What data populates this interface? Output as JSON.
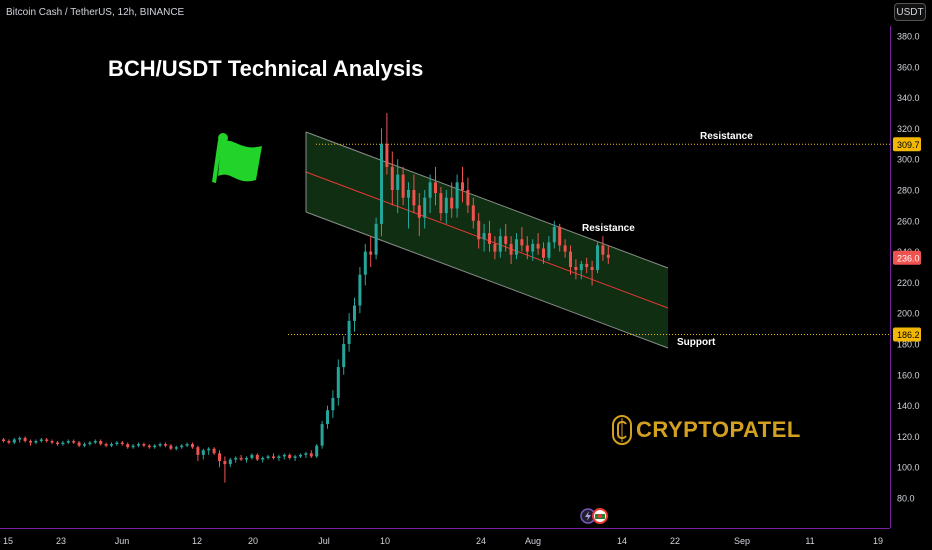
{
  "header": {
    "symbol": "Bitcoin Cash / TetherUS, 12h, BINANCE",
    "title": "BCH/USDT Technical Analysis",
    "currency": "USDT"
  },
  "logo": {
    "text": "CRYPTOPATEL"
  },
  "colors": {
    "up": "#26a69a",
    "down": "#ef5350",
    "channel_fill": "#0f2e12",
    "channel_edge": "#8a8f8a",
    "midline": "#e53935",
    "resistance_level": "#f2b705",
    "support_level": "#f2b705",
    "flag": "#22d32a",
    "logo": "#d4a020",
    "axis_border": "#7b1fa2"
  },
  "chart_data": {
    "type": "candlestick",
    "symbol": "BCHUSDT",
    "interval": "12h",
    "ylim": [
      70,
      390
    ],
    "y_ticks": [
      80,
      100,
      120,
      140,
      160,
      180,
      200,
      220,
      240,
      260,
      280,
      300,
      320,
      340,
      360,
      380
    ],
    "y_tick_labels": [
      "80.0",
      "100.0",
      "120.0",
      "140.0",
      "160.0",
      "180.0",
      "200.0",
      "220.0",
      "240.0",
      "260.0",
      "280.0",
      "300.0",
      "320.0",
      "340.0",
      "360.0",
      "380.0"
    ],
    "x_ticks": [
      "15",
      "23",
      "Jun",
      "12",
      "20",
      "Jul",
      "10",
      "24",
      "Aug",
      "14",
      "22",
      "Sep",
      "11",
      "19"
    ],
    "price_labels": [
      {
        "value": 309.7,
        "text": "309.7",
        "color": "#f2b705"
      },
      {
        "value": 236.0,
        "text": "236.0",
        "color": "#ef5350"
      },
      {
        "value": 186.2,
        "text": "186.2",
        "color": "#f2b705"
      }
    ],
    "levels": [
      {
        "value": 309.7,
        "label": "Resistance"
      },
      {
        "value": 186.2,
        "label": "Support"
      }
    ],
    "channel_annotation": "Resistance",
    "candles": [
      [
        118,
        119,
        116,
        117
      ],
      [
        117,
        118,
        115,
        116
      ],
      [
        116,
        119,
        115,
        118
      ],
      [
        118,
        120,
        116,
        119
      ],
      [
        119,
        120,
        116,
        117
      ],
      [
        117,
        118,
        114,
        116
      ],
      [
        116,
        118,
        115,
        117
      ],
      [
        117,
        119,
        116,
        118
      ],
      [
        118,
        119,
        116,
        117
      ],
      [
        117,
        118,
        115,
        116
      ],
      [
        116,
        117,
        114,
        115
      ],
      [
        115,
        117,
        114,
        116
      ],
      [
        116,
        118,
        115,
        117
      ],
      [
        117,
        118,
        115,
        116
      ],
      [
        116,
        117,
        113,
        114
      ],
      [
        114,
        116,
        113,
        115
      ],
      [
        115,
        117,
        114,
        116
      ],
      [
        116,
        118,
        115,
        117
      ],
      [
        117,
        118,
        114,
        115
      ],
      [
        115,
        116,
        113,
        114
      ],
      [
        114,
        116,
        113,
        115
      ],
      [
        115,
        117,
        114,
        116
      ],
      [
        116,
        117,
        114,
        115
      ],
      [
        115,
        116,
        112,
        113
      ],
      [
        113,
        115,
        112,
        114
      ],
      [
        114,
        116,
        113,
        115
      ],
      [
        115,
        116,
        113,
        114
      ],
      [
        114,
        115,
        112,
        113
      ],
      [
        113,
        115,
        112,
        114
      ],
      [
        114,
        116,
        113,
        115
      ],
      [
        115,
        116,
        113,
        114
      ],
      [
        114,
        115,
        111,
        112
      ],
      [
        112,
        114,
        111,
        113
      ],
      [
        113,
        115,
        112,
        114
      ],
      [
        114,
        116,
        113,
        115
      ],
      [
        115,
        116,
        112,
        113
      ],
      [
        113,
        114,
        104,
        108
      ],
      [
        108,
        112,
        105,
        111
      ],
      [
        111,
        113,
        108,
        112
      ],
      [
        112,
        113,
        108,
        109
      ],
      [
        109,
        111,
        100,
        104
      ],
      [
        104,
        107,
        90,
        102
      ],
      [
        102,
        106,
        100,
        105
      ],
      [
        105,
        107,
        103,
        106
      ],
      [
        106,
        108,
        104,
        105
      ],
      [
        105,
        107,
        103,
        106
      ],
      [
        106,
        109,
        105,
        108
      ],
      [
        108,
        109,
        104,
        105
      ],
      [
        105,
        107,
        103,
        106
      ],
      [
        106,
        108,
        105,
        107
      ],
      [
        107,
        109,
        105,
        106
      ],
      [
        106,
        108,
        104,
        107
      ],
      [
        107,
        109,
        105,
        108
      ],
      [
        108,
        109,
        105,
        106
      ],
      [
        106,
        108,
        104,
        107
      ],
      [
        107,
        109,
        106,
        108
      ],
      [
        108,
        110,
        106,
        109
      ],
      [
        109,
        111,
        106,
        107
      ],
      [
        107,
        115,
        106,
        114
      ],
      [
        114,
        130,
        112,
        128
      ],
      [
        128,
        140,
        125,
        137
      ],
      [
        137,
        150,
        132,
        145
      ],
      [
        145,
        170,
        140,
        165
      ],
      [
        165,
        185,
        160,
        180
      ],
      [
        180,
        200,
        175,
        195
      ],
      [
        195,
        210,
        188,
        205
      ],
      [
        205,
        230,
        200,
        225
      ],
      [
        225,
        245,
        218,
        240
      ],
      [
        240,
        250,
        230,
        238
      ],
      [
        238,
        262,
        235,
        258
      ],
      [
        258,
        320,
        250,
        310
      ],
      [
        310,
        330,
        290,
        295
      ],
      [
        295,
        305,
        270,
        280
      ],
      [
        280,
        300,
        265,
        290
      ],
      [
        290,
        295,
        270,
        275
      ],
      [
        275,
        285,
        255,
        280
      ],
      [
        280,
        290,
        265,
        270
      ],
      [
        270,
        278,
        250,
        262
      ],
      [
        262,
        280,
        255,
        275
      ],
      [
        275,
        290,
        265,
        285
      ],
      [
        285,
        295,
        270,
        278
      ],
      [
        278,
        282,
        260,
        265
      ],
      [
        265,
        280,
        258,
        275
      ],
      [
        275,
        285,
        262,
        268
      ],
      [
        268,
        290,
        262,
        285
      ],
      [
        285,
        295,
        272,
        280
      ],
      [
        280,
        288,
        265,
        270
      ],
      [
        270,
        275,
        255,
        260
      ],
      [
        260,
        265,
        242,
        248
      ],
      [
        248,
        258,
        240,
        252
      ],
      [
        252,
        260,
        240,
        245
      ],
      [
        245,
        250,
        235,
        240
      ],
      [
        240,
        255,
        236,
        250
      ],
      [
        250,
        258,
        240,
        245
      ],
      [
        245,
        250,
        232,
        238
      ],
      [
        238,
        252,
        235,
        248
      ],
      [
        248,
        256,
        240,
        244
      ],
      [
        244,
        250,
        235,
        240
      ],
      [
        240,
        248,
        234,
        245
      ],
      [
        245,
        252,
        238,
        242
      ],
      [
        242,
        246,
        232,
        236
      ],
      [
        236,
        250,
        234,
        246
      ],
      [
        246,
        260,
        242,
        256
      ],
      [
        256,
        258,
        240,
        244
      ],
      [
        244,
        248,
        236,
        240
      ],
      [
        240,
        244,
        225,
        230
      ],
      [
        230,
        235,
        222,
        228
      ],
      [
        228,
        234,
        222,
        232
      ],
      [
        232,
        236,
        226,
        230
      ],
      [
        230,
        234,
        218,
        228
      ],
      [
        228,
        246,
        226,
        244
      ],
      [
        244,
        250,
        234,
        238
      ],
      [
        238,
        244,
        232,
        236
      ]
    ],
    "candle_x_start": 2,
    "candle_x_step": 5.4
  }
}
